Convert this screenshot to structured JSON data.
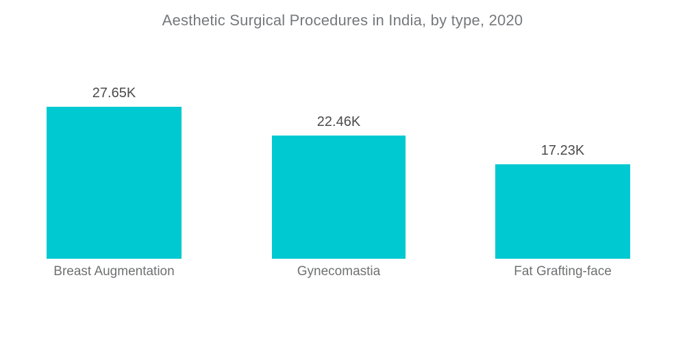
{
  "title": "Aesthetic Surgical Procedures in India, by type, 2020",
  "colors": {
    "bar": "#00C9D1",
    "title_text": "#75787B",
    "value_text": "#4A4A4D",
    "category_text": "#6E7072",
    "background": "#FFFFFF"
  },
  "chart_data": {
    "type": "bar",
    "title": "Aesthetic Surgical Procedures in India, by type, 2020",
    "categories": [
      "Breast Augmentation",
      "Gynecomastia",
      "Fat Grafting-face"
    ],
    "values": [
      27.65,
      22.46,
      17.23
    ],
    "value_unit": "K",
    "value_labels": [
      "27.65K",
      "22.46K",
      "17.23K"
    ],
    "xlabel": "",
    "ylabel": "",
    "ylim": [
      0,
      27.65
    ],
    "grid": false,
    "axes_visible": false,
    "legend_position": "none",
    "bar_color": "#00C9D1"
  }
}
